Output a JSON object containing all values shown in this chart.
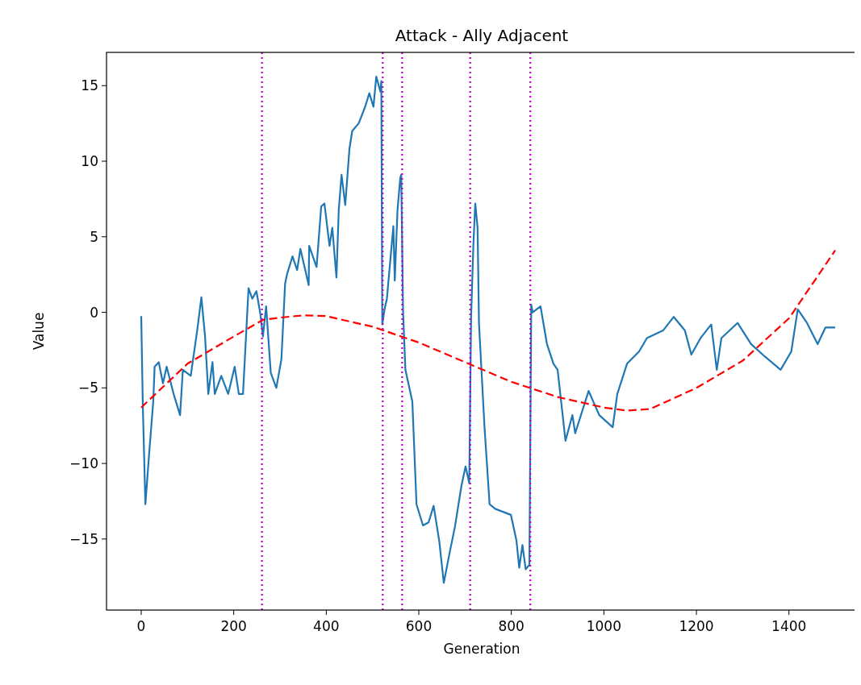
{
  "chart_data": {
    "type": "line",
    "title": "Attack - Ally Adjacent",
    "xlabel": "Generation",
    "ylabel": "Value",
    "xlim": [
      -75,
      1547
    ],
    "ylim": [
      -19.7,
      17.2
    ],
    "xticks": [
      0,
      200,
      400,
      600,
      800,
      1000,
      1200,
      1400
    ],
    "yticks": [
      -15,
      -10,
      -5,
      0,
      5,
      10,
      15
    ],
    "grid": false,
    "series": [
      {
        "color": "#1f77b4",
        "line_style": "solid",
        "x": [
          0,
          3.5,
          9,
          17,
          26,
          29,
          38,
          47,
          55,
          70,
          84,
          90,
          107,
          121,
          130,
          138,
          145,
          154,
          159,
          173,
          188,
          202,
          211,
          220,
          232,
          240,
          249,
          258,
          263,
          270,
          280,
          292,
          303,
          311,
          315,
          327,
          337,
          344,
          362,
          363,
          379,
          389,
          396,
          407,
          413,
          422,
          427,
          433,
          441,
          450,
          456,
          470,
          484,
          493,
          502,
          508,
          517,
          519,
          521,
          526,
          531,
          540,
          545,
          548,
          554,
          560,
          562,
          566,
          571,
          586,
          595,
          609,
          621,
          632,
          644,
          654,
          666,
          678,
          692,
          701,
          709,
          713,
          718,
          722,
          727,
          730,
          742,
          753,
          765,
          782,
          799,
          811,
          817,
          824,
          831,
          839,
          843,
          846,
          863,
          877,
          891,
          900,
          917,
          932,
          938,
          967,
          990,
          1019,
          1029,
          1050,
          1076,
          1093,
          1128,
          1151,
          1175,
          1189,
          1209,
          1232,
          1244,
          1254,
          1289,
          1318,
          1347,
          1382,
          1405,
          1419,
          1439,
          1462,
          1479,
          1500
        ],
        "values": [
          -0.25,
          -6.2,
          -12.7,
          -9.4,
          -5.9,
          -3.6,
          -3.3,
          -4.7,
          -3.6,
          -5.4,
          -6.8,
          -3.8,
          -4.2,
          -1.2,
          1.0,
          -1.6,
          -5.4,
          -3.3,
          -5.4,
          -4.2,
          -5.4,
          -3.6,
          -5.4,
          -5.4,
          1.6,
          0.9,
          1.4,
          -0.2,
          -1.6,
          0.4,
          -4.0,
          -5.0,
          -3.1,
          1.9,
          2.5,
          3.7,
          2.8,
          4.2,
          1.8,
          4.4,
          3.0,
          7.0,
          7.2,
          4.4,
          5.6,
          2.3,
          6.8,
          9.1,
          7.1,
          10.8,
          12.0,
          12.5,
          13.6,
          14.5,
          13.6,
          15.6,
          14.6,
          15.3,
          -0.8,
          0.2,
          0.9,
          4.0,
          5.7,
          2.1,
          6.8,
          8.9,
          9.1,
          0,
          -3.8,
          -5.9,
          -12.7,
          -14.1,
          -13.9,
          -12.8,
          -15.1,
          -17.9,
          -16.0,
          -14.2,
          -11.5,
          -10.2,
          -11.3,
          -0.3,
          4.5,
          7.2,
          5.6,
          -0.7,
          -7.6,
          -12.7,
          -13.0,
          -13.2,
          -13.4,
          -15.1,
          -16.9,
          -15.4,
          -17.0,
          -16.7,
          0.5,
          0,
          0.4,
          -2.1,
          -3.4,
          -3.8,
          -8.5,
          -6.8,
          -8.0,
          -5.2,
          -6.8,
          -7.6,
          -5.4,
          -3.4,
          -2.6,
          -1.7,
          -1.2,
          -0.3,
          -1.2,
          -2.8,
          -1.7,
          -0.8,
          -3.8,
          -1.7,
          -0.7,
          -2.1,
          -2.9,
          -3.8,
          -2.6,
          0.2,
          -0.7,
          -2.1,
          -1.0,
          -1.0
        ]
      },
      {
        "color": "#ff0000",
        "line_style": "dashed",
        "x": [
          0,
          100,
          200,
          263,
          300,
          350,
          400,
          500,
          600,
          700,
          800,
          900,
          1000,
          1050,
          1100,
          1200,
          1300,
          1400,
          1500
        ],
        "values": [
          -6.3,
          -3.4,
          -1.6,
          -0.5,
          -0.35,
          -0.2,
          -0.25,
          -0.95,
          -2.0,
          -3.3,
          -4.6,
          -5.6,
          -6.3,
          -6.5,
          -6.4,
          -5.0,
          -3.2,
          -0.4,
          4.1
        ]
      }
    ],
    "ref_lines": [
      {
        "axis": "x",
        "value": 261,
        "color": "#bf00bf",
        "line_style": "dotted"
      },
      {
        "axis": "x",
        "value": 522,
        "color": "#bf00bf",
        "line_style": "dotted"
      },
      {
        "axis": "x",
        "value": 564,
        "color": "#bf00bf",
        "line_style": "dotted"
      },
      {
        "axis": "x",
        "value": 711,
        "color": "#bf00bf",
        "line_style": "dotted"
      },
      {
        "axis": "x",
        "value": 841,
        "color": "#bf00bf",
        "line_style": "dotted"
      }
    ]
  }
}
